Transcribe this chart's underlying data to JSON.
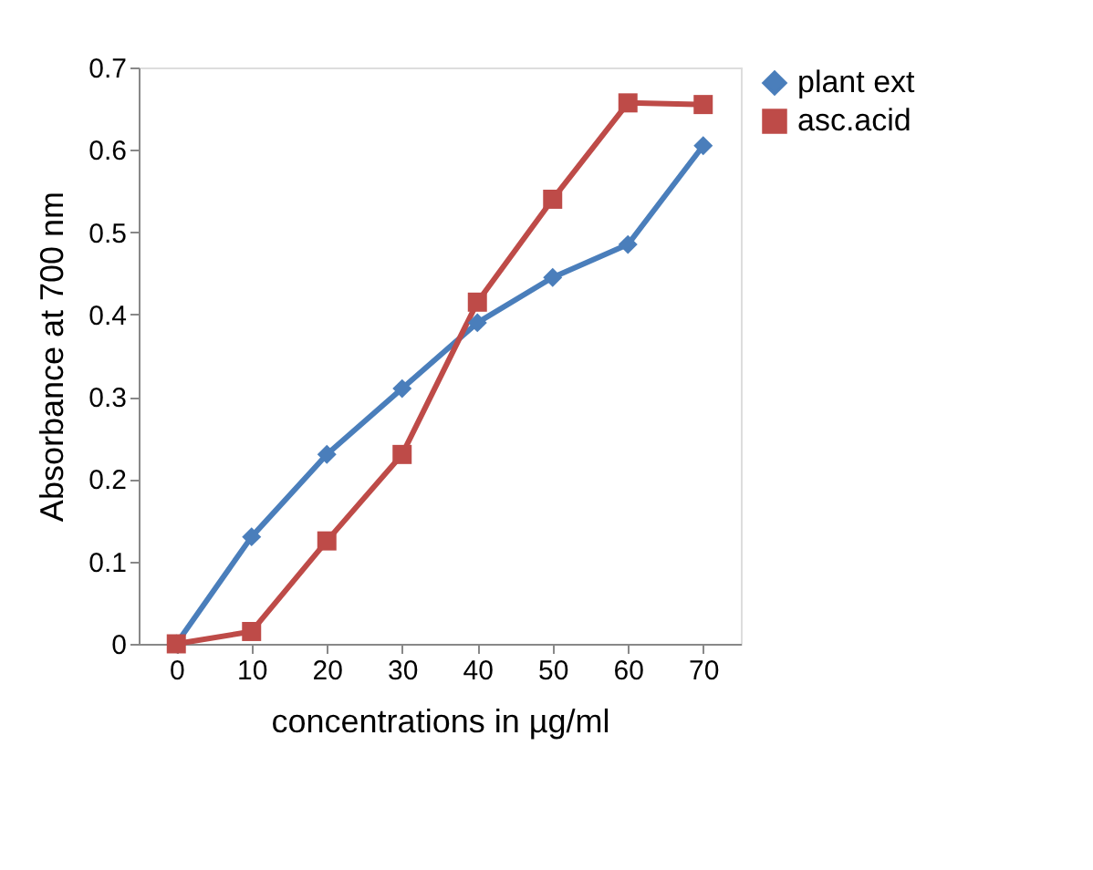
{
  "chart_data": {
    "type": "line",
    "xlabel": "concentrations in µg/ml",
    "ylabel": "Absorbance at 700 nm",
    "categories": [
      "0",
      "10",
      "20",
      "30",
      "40",
      "50",
      "60",
      "70"
    ],
    "series": [
      {
        "name": "plant ext",
        "color": "#4a7ebb",
        "marker": "diamond",
        "values": [
          0,
          0.13,
          0.23,
          0.31,
          0.39,
          0.445,
          0.485,
          0.605
        ]
      },
      {
        "name": "asc.acid",
        "color": "#be4b48",
        "marker": "square",
        "values": [
          0,
          0.015,
          0.125,
          0.23,
          0.415,
          0.54,
          0.657,
          0.655
        ]
      }
    ],
    "ylim": [
      0,
      0.7
    ],
    "yticks": [
      0,
      0.1,
      0.2,
      0.3,
      0.4,
      0.5,
      0.6,
      0.7
    ],
    "grid": false,
    "legend": "right",
    "line_style": "solid"
  }
}
